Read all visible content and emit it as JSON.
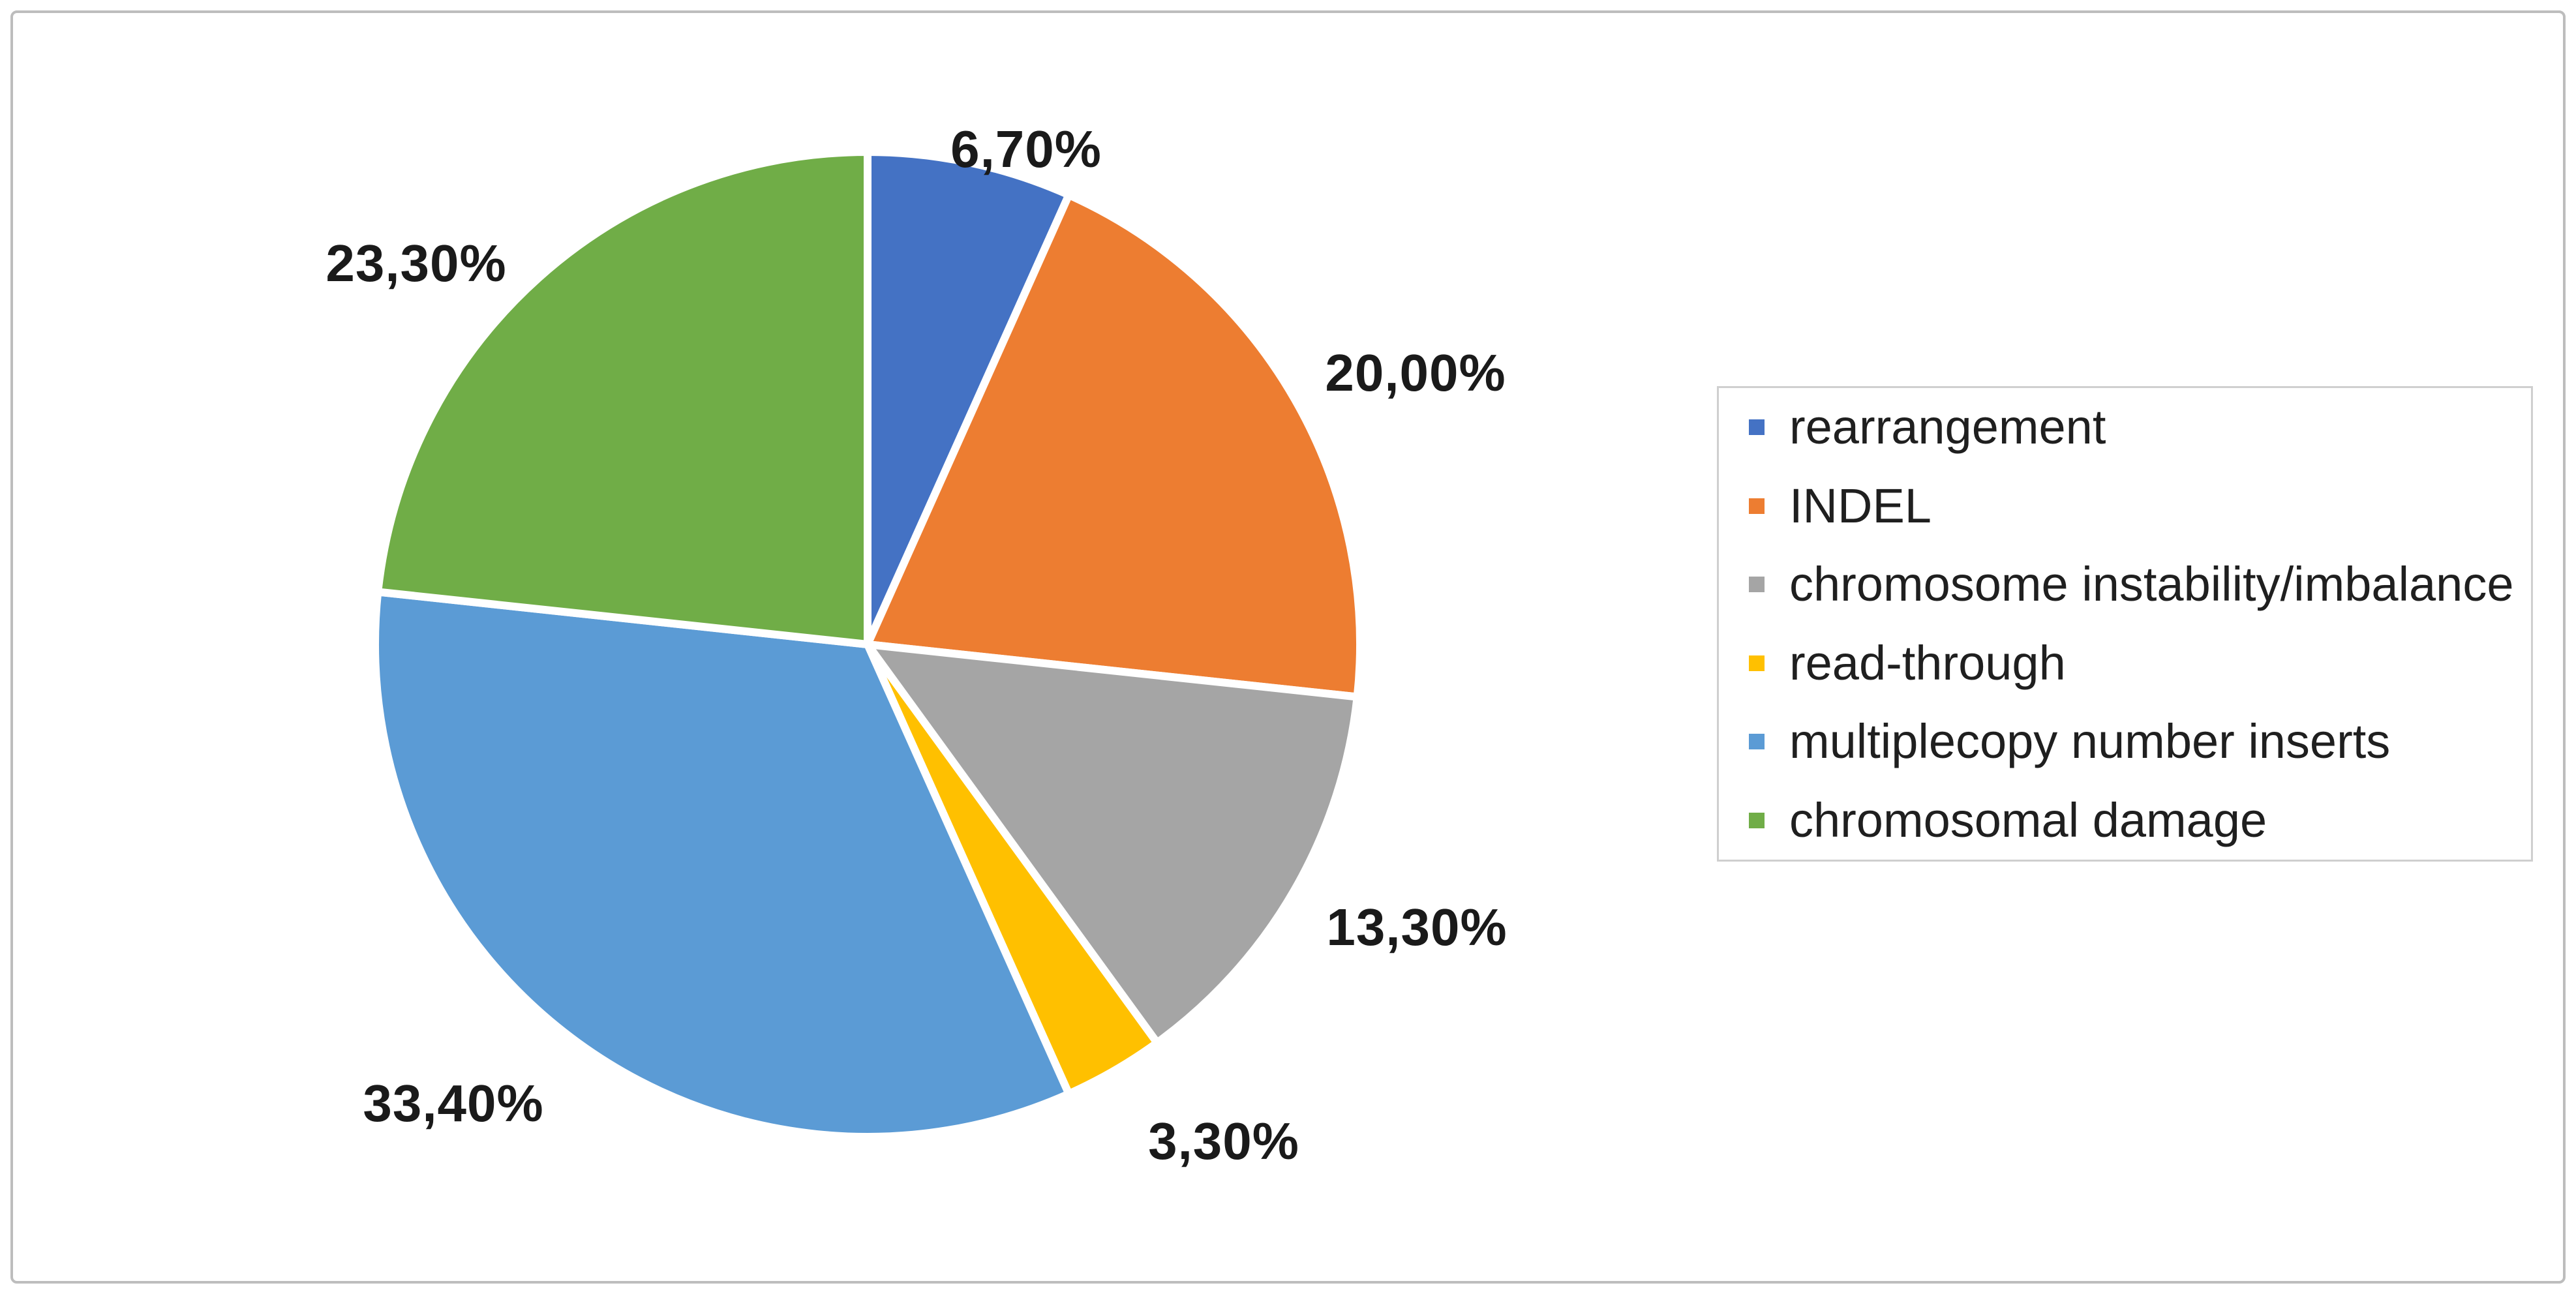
{
  "chart_data": {
    "type": "pie",
    "title": "",
    "categories": [
      "rearrangement",
      "INDEL",
      "chromosome instability/imbalance",
      "read-through",
      "multiplecopy number inserts",
      "chromosomal damage"
    ],
    "values": [
      6.7,
      20.0,
      13.3,
      3.3,
      33.4,
      23.3
    ],
    "labels": [
      "6,70%",
      "20,00%",
      "13,30%",
      "3,30%",
      "33,40%",
      "23,30%"
    ],
    "colors": [
      "#4472C4",
      "#ED7D31",
      "#A5A5A5",
      "#FFC000",
      "#5B9BD5",
      "#70AD47"
    ],
    "start_angle_deg": 0,
    "direction": "clockwise",
    "slice_border_color": "#FFFFFF",
    "data_labels": "outside-end",
    "decimal_separator": ",",
    "legend_position": "right",
    "grid": false
  },
  "frame": {
    "border_color": "#bdbdbd",
    "background": "#ffffff"
  },
  "legend_box": {
    "border_color": "#cfcfcf",
    "background": "#ffffff"
  }
}
